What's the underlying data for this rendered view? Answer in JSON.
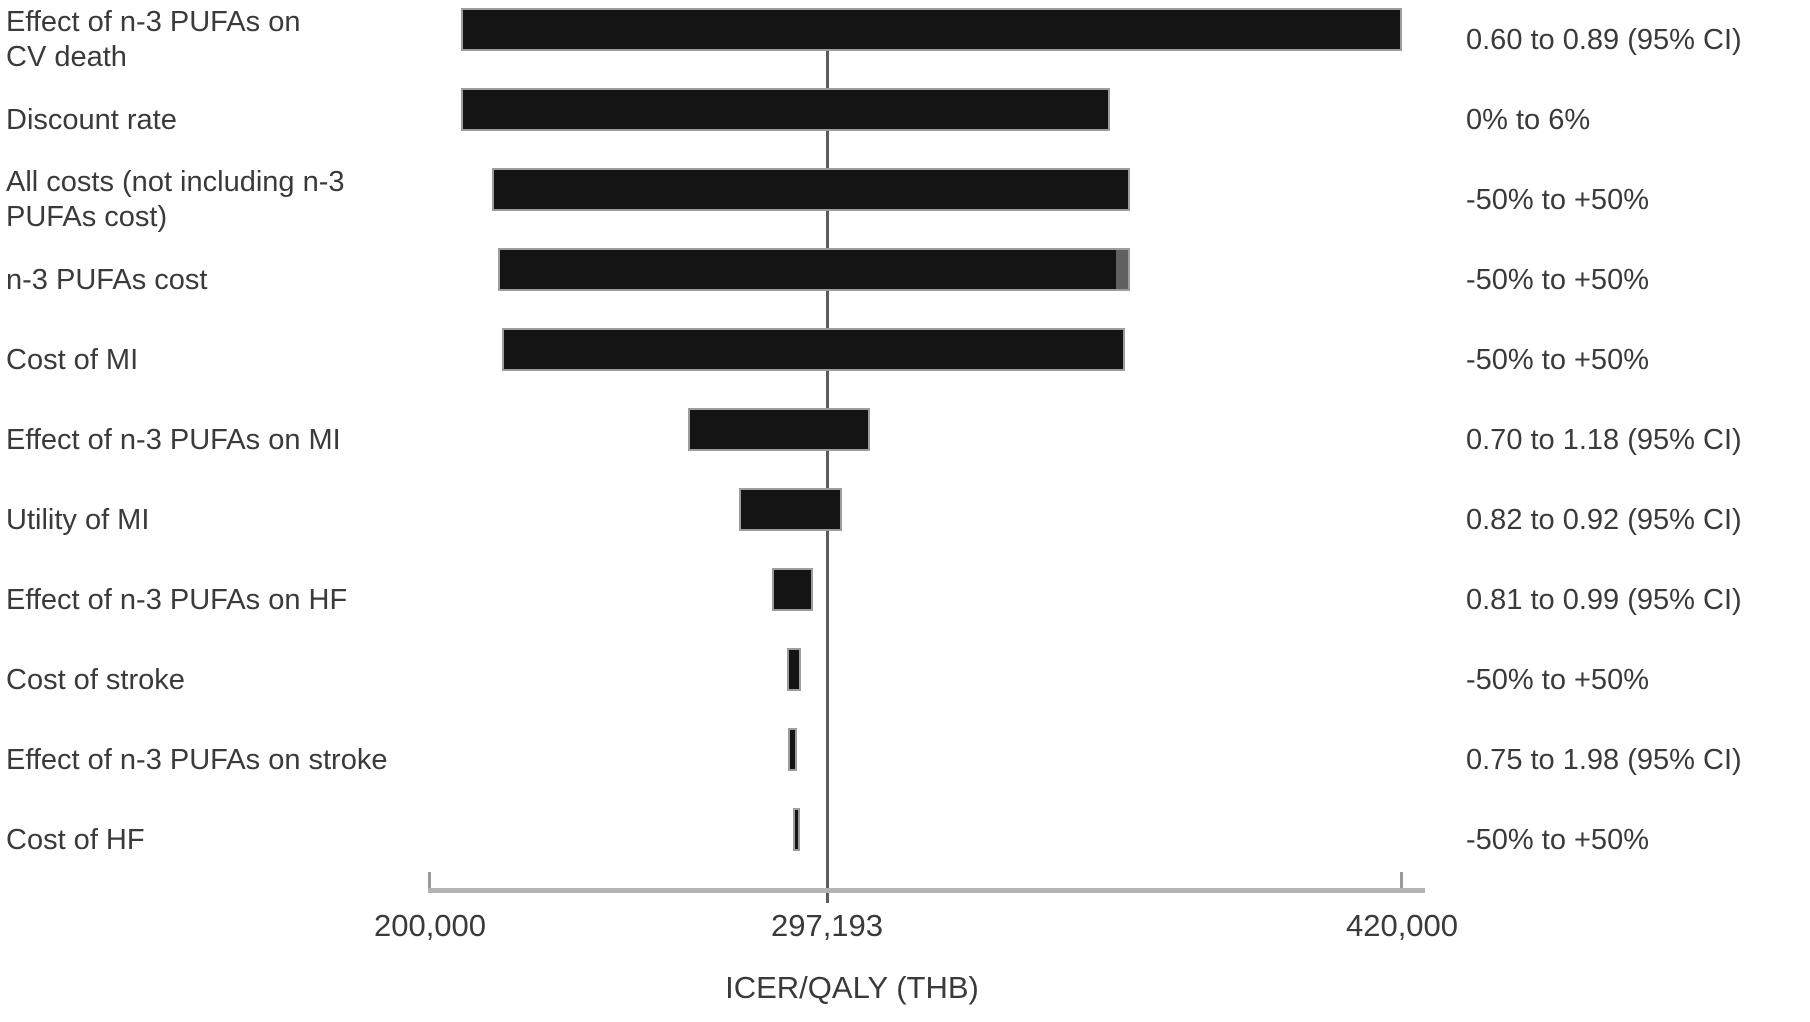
{
  "chart_data": {
    "type": "bar",
    "subtype": "tornado-one-way-sensitivity",
    "title": "",
    "xlabel": "ICER/QALY (THB)",
    "units": "THB per QALY",
    "legend": "none",
    "grid": false,
    "x_axis": {
      "title": "ICER/QALY (THB)",
      "min": 200000,
      "max": 420000,
      "min_label": "200,000",
      "max_label": "420,000",
      "base_value": 297193,
      "base_label": "297,193",
      "base_frac": 0.41
    },
    "rows": [
      {
        "label": "Effect of n-3 PUFAs on\nCV death",
        "low": 208000,
        "high": 420000,
        "range_label": "0.60 to 0.89 (95% CI)"
      },
      {
        "label": "Discount rate",
        "low": 208000,
        "high": 357600,
        "range_label": "0% to 6%"
      },
      {
        "label": "All costs (not including n-3\nPUFAs cost)",
        "low": 215600,
        "high": 361900,
        "range_label": "-50% to +50%"
      },
      {
        "label": "n-3 PUFAs cost",
        "low": 217000,
        "high": 361900,
        "range_label": "-50% to +50%",
        "gray_tip": true
      },
      {
        "label": "Cost of MI",
        "low": 218000,
        "high": 360800,
        "range_label": "-50% to +50%"
      },
      {
        "label": "Effect of n-3 PUFAs on MI",
        "low": 263300,
        "high": 306400,
        "range_label": "0.70 to 1.18 (95% CI)"
      },
      {
        "label": "Utility of MI",
        "low": 275800,
        "high": 300400,
        "range_label": "0.82 to 0.92 (95% CI)"
      },
      {
        "label": "Effect of n-3 PUFAs on HF",
        "low": 283800,
        "high": 293800,
        "range_label": "0.81 to 0.99 (95% CI)"
      },
      {
        "label": "Cost of stroke",
        "low": 287400,
        "high": 290900,
        "range_label": "-50% to +50%"
      },
      {
        "label": "Effect of n-3 PUFAs on stroke",
        "low": 287700,
        "high": 289900,
        "range_label": "0.75 to 1.98 (95% CI)"
      },
      {
        "label": "Cost of HF",
        "low": 288900,
        "high": 290600,
        "range_label": "-50% to +50%"
      }
    ],
    "colors": {
      "bar": "#141414",
      "bar_edge": "#9d9d9d",
      "bar_tip": "#606060",
      "baseline": "#5c5c5c",
      "axis": "#b3b3b3",
      "text": "#3a3a3a"
    }
  }
}
